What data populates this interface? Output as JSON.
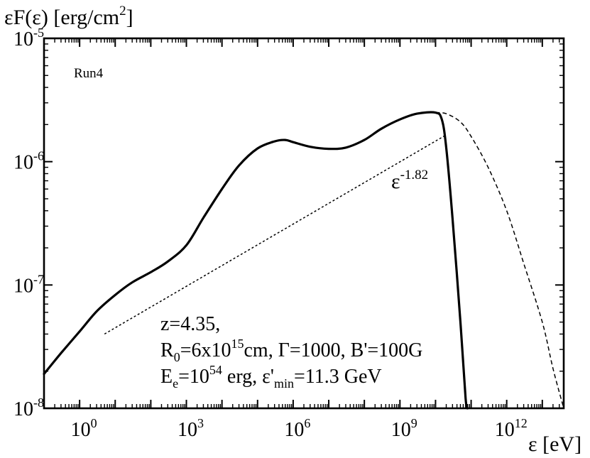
{
  "chart_data": {
    "type": "line",
    "ylabel": {
      "main": "εF(ε) [erg/cm",
      "sup": "2",
      "close": "]"
    },
    "xlabel": "ε [eV]",
    "run_label": "Run4",
    "x_scale": "log",
    "y_scale": "log",
    "xlim": [
      0.1,
      40000000000000.0
    ],
    "ylim": [
      1e-08,
      1e-05
    ],
    "x_ticks": [
      {
        "base": "10",
        "exp": "0",
        "value": 1
      },
      {
        "base": "10",
        "exp": "3",
        "value": 1000
      },
      {
        "base": "10",
        "exp": "6",
        "value": 1000000
      },
      {
        "base": "10",
        "exp": "9",
        "value": 1000000000
      },
      {
        "base": "10",
        "exp": "12",
        "value": 1000000000000
      }
    ],
    "y_ticks": [
      {
        "base": "10",
        "exp": "-5",
        "value": 1e-05
      },
      {
        "base": "10",
        "exp": "-6",
        "value": 1e-06
      },
      {
        "base": "10",
        "exp": "-7",
        "value": 1e-07
      },
      {
        "base": "10",
        "exp": "-8",
        "value": 1e-08
      }
    ],
    "series": [
      {
        "style": "solid-thick",
        "points": [
          [
            0.1,
            1.9e-08
          ],
          [
            0.3,
            2.8e-08
          ],
          [
            1,
            4.2e-08
          ],
          [
            3,
            6.1e-08
          ],
          [
            10,
            8.3e-08
          ],
          [
            30,
            1.05e-07
          ],
          [
            100,
            1.27e-07
          ],
          [
            300,
            1.55e-07
          ],
          [
            1000,
            2.1e-07
          ],
          [
            3000,
            3.5e-07
          ],
          [
            10000,
            6e-07
          ],
          [
            30000,
            9.3e-07
          ],
          [
            100000,
            1.28e-06
          ],
          [
            300000,
            1.46e-06
          ],
          [
            600000,
            1.5e-06
          ],
          [
            1000000,
            1.44e-06
          ],
          [
            3000000,
            1.32e-06
          ],
          [
            10000000,
            1.27e-06
          ],
          [
            30000000,
            1.3e-06
          ],
          [
            100000000,
            1.5e-06
          ],
          [
            300000000,
            1.85e-06
          ],
          [
            1000000000,
            2.2e-06
          ],
          [
            3000000000,
            2.45e-06
          ],
          [
            10000000000,
            2.5e-06
          ],
          [
            15000000000,
            2.2e-06
          ],
          [
            20000000000,
            1.3e-06
          ],
          [
            30000000000,
            3.5e-07
          ],
          [
            50000000000,
            5e-08
          ],
          [
            70000000000,
            1.2e-08
          ],
          [
            80000000000,
            1e-08
          ]
        ]
      },
      {
        "style": "dashed",
        "points": [
          [
            10000000000,
            2.5e-06
          ],
          [
            20000000000,
            2.45e-06
          ],
          [
            50000000000,
            2.1e-06
          ],
          [
            100000000000,
            1.6e-06
          ],
          [
            300000000000,
            9e-07
          ],
          [
            1000000000000,
            4e-07
          ],
          [
            3000000000000,
            1.5e-07
          ],
          [
            10000000000000,
            5e-08
          ],
          [
            20000000000000,
            2.1e-08
          ],
          [
            40000000000000,
            1e-08
          ]
        ]
      },
      {
        "style": "dotted",
        "points": [
          [
            5,
            4e-08
          ],
          [
            20000000000,
            1.65e-06
          ]
        ]
      }
    ],
    "annotations": {
      "slope": {
        "base": "ε",
        "exp": "-1.82",
        "x": 200000000.0,
        "y": 6.5e-07
      },
      "params": {
        "line1": "z=4.35,",
        "line2": {
          "r": "R",
          "r_sub": "0",
          "a": "=6x10",
          "a_sup": "15",
          "b": "cm, Γ=1000, B'=100G"
        },
        "line3": {
          "e": "E",
          "e_sub": "e",
          "a": "=10",
          "a_sup": "54",
          "b": " erg, ε'",
          "b_sub": "min",
          "c": "=11.3 GeV"
        }
      }
    }
  }
}
